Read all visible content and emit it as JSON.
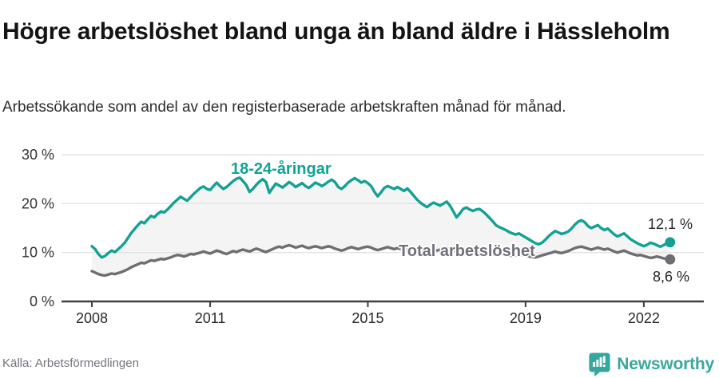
{
  "chart_data": {
    "type": "line",
    "title": "Högre arbetslöshet bland unga än bland äldre i Hässleholm",
    "subtitle": "Arbetssökande som andel av den registerbaserade arbetskraften månad för månad.",
    "unit": "%",
    "x_start_year": 2008,
    "points_per_year": 12,
    "grid": "horizontal",
    "legend_position": "inline-labels",
    "x_axis": {
      "ticks": [
        {
          "value": 2008,
          "label": "2008"
        },
        {
          "value": 2011,
          "label": "2011"
        },
        {
          "value": 2015,
          "label": "2015"
        },
        {
          "value": 2019,
          "label": "2019"
        },
        {
          "value": 2022,
          "label": "2022"
        }
      ]
    },
    "y_axis": {
      "range": [
        0,
        32
      ],
      "ticks": [
        {
          "value": 0,
          "label": "0 %"
        },
        {
          "value": 10,
          "label": "10 %"
        },
        {
          "value": 20,
          "label": "20 %"
        },
        {
          "value": 30,
          "label": "30 %"
        }
      ]
    },
    "series": [
      {
        "name": "18-24-åringar",
        "color": "#12a193",
        "end_value": 12.1,
        "end_label": "12,1 %",
        "values": [
          11.3,
          10.7,
          9.7,
          9.0,
          9.3,
          9.9,
          10.4,
          10.1,
          10.7,
          11.3,
          12.0,
          13.0,
          14.0,
          14.8,
          15.6,
          16.3,
          16.0,
          16.8,
          17.5,
          17.2,
          17.9,
          18.4,
          18.2,
          18.8,
          19.5,
          20.2,
          20.8,
          21.4,
          21.0,
          20.6,
          21.3,
          22.0,
          22.6,
          23.2,
          23.5,
          23.0,
          22.8,
          23.6,
          24.3,
          23.6,
          23.0,
          23.4,
          24.0,
          24.6,
          25.1,
          25.3,
          24.6,
          23.8,
          22.4,
          23.0,
          23.8,
          24.5,
          25.0,
          24.4,
          22.2,
          23.2,
          24.1,
          23.7,
          23.3,
          23.8,
          24.4,
          24.0,
          23.4,
          23.8,
          24.2,
          23.6,
          23.2,
          23.7,
          24.3,
          24.0,
          23.6,
          24.0,
          24.5,
          24.9,
          24.4,
          23.4,
          23.0,
          23.6,
          24.3,
          24.8,
          25.2,
          24.8,
          24.3,
          24.6,
          24.2,
          23.6,
          22.4,
          21.5,
          22.3,
          23.2,
          23.6,
          23.3,
          23.0,
          23.4,
          23.0,
          22.6,
          23.1,
          22.4,
          21.6,
          20.8,
          20.2,
          19.7,
          19.3,
          19.8,
          20.2,
          19.9,
          19.6,
          20.0,
          20.4,
          19.6,
          18.4,
          17.2,
          18.0,
          18.9,
          19.2,
          18.8,
          18.5,
          18.8,
          18.9,
          18.4,
          17.8,
          17.1,
          16.4,
          15.6,
          15.2,
          14.9,
          14.6,
          14.2,
          13.9,
          13.7,
          13.9,
          13.5,
          13.1,
          12.7,
          12.3,
          11.9,
          11.7,
          12.0,
          12.6,
          13.3,
          13.9,
          14.4,
          14.1,
          13.8,
          14.0,
          14.3,
          14.9,
          15.7,
          16.3,
          16.6,
          16.2,
          15.4,
          15.0,
          15.3,
          15.6,
          15.0,
          14.6,
          14.9,
          14.3,
          13.7,
          13.3,
          13.6,
          13.9,
          13.3,
          12.7,
          12.3,
          11.9,
          11.6,
          11.3,
          11.6,
          12.0,
          11.8,
          11.5,
          11.2,
          11.5,
          11.9,
          12.1
        ]
      },
      {
        "name": "Total arbetslöshet",
        "color": "#6d6d72",
        "end_value": 8.6,
        "end_label": "8,6 %",
        "values": [
          6.2,
          5.9,
          5.6,
          5.4,
          5.3,
          5.5,
          5.7,
          5.6,
          5.8,
          6.0,
          6.3,
          6.6,
          7.0,
          7.3,
          7.6,
          7.9,
          7.8,
          8.1,
          8.4,
          8.3,
          8.5,
          8.7,
          8.6,
          8.8,
          9.0,
          9.3,
          9.5,
          9.4,
          9.2,
          9.4,
          9.7,
          9.6,
          9.8,
          10.0,
          10.2,
          10.0,
          9.8,
          10.1,
          10.4,
          10.2,
          9.9,
          9.7,
          10.0,
          10.3,
          10.1,
          10.4,
          10.6,
          10.4,
          10.2,
          10.5,
          10.8,
          10.6,
          10.3,
          10.1,
          10.4,
          10.7,
          11.0,
          11.2,
          11.0,
          11.3,
          11.5,
          11.3,
          11.0,
          11.2,
          11.4,
          11.1,
          10.9,
          11.1,
          11.3,
          11.1,
          10.9,
          11.1,
          11.3,
          11.1,
          10.8,
          10.6,
          10.4,
          10.6,
          10.9,
          11.1,
          10.9,
          10.7,
          10.9,
          11.1,
          11.2,
          11.0,
          10.7,
          10.5,
          10.7,
          10.9,
          11.1,
          10.9,
          10.7,
          10.9,
          10.7,
          10.5,
          10.8,
          11.0,
          10.7,
          10.4,
          10.2,
          10.4,
          10.6,
          10.8,
          10.6,
          10.4,
          10.6,
          10.8,
          10.9,
          10.7,
          10.4,
          10.2,
          10.4,
          10.6,
          10.4,
          10.2,
          10.0,
          10.2,
          10.4,
          10.2,
          10.0,
          9.8,
          9.6,
          9.5,
          9.7,
          9.9,
          9.7,
          9.5,
          9.3,
          9.5,
          9.7,
          9.5,
          9.4,
          9.2,
          9.1,
          9.0,
          9.2,
          9.4,
          9.6,
          9.8,
          10.0,
          10.2,
          10.0,
          9.9,
          10.1,
          10.3,
          10.6,
          10.9,
          11.1,
          11.2,
          11.0,
          10.8,
          10.6,
          10.8,
          11.0,
          10.8,
          10.6,
          10.8,
          10.5,
          10.2,
          10.0,
          10.2,
          10.4,
          10.1,
          9.8,
          9.6,
          9.4,
          9.5,
          9.3,
          9.1,
          8.9,
          9.0,
          9.2,
          9.0,
          8.8,
          8.7,
          8.6
        ]
      }
    ],
    "colors": {
      "band_fill": "#f4f4f5",
      "gridline": "#e3e3e3",
      "axis": "#3f3f3f",
      "tick_label": "#2a2a2a"
    }
  },
  "footer": {
    "source": "Källa: Arbetsförmedlingen",
    "brand": "Newsworthy",
    "brand_icon": "speech-bubble-with-bar-chart",
    "brand_color": "#35a79c"
  }
}
